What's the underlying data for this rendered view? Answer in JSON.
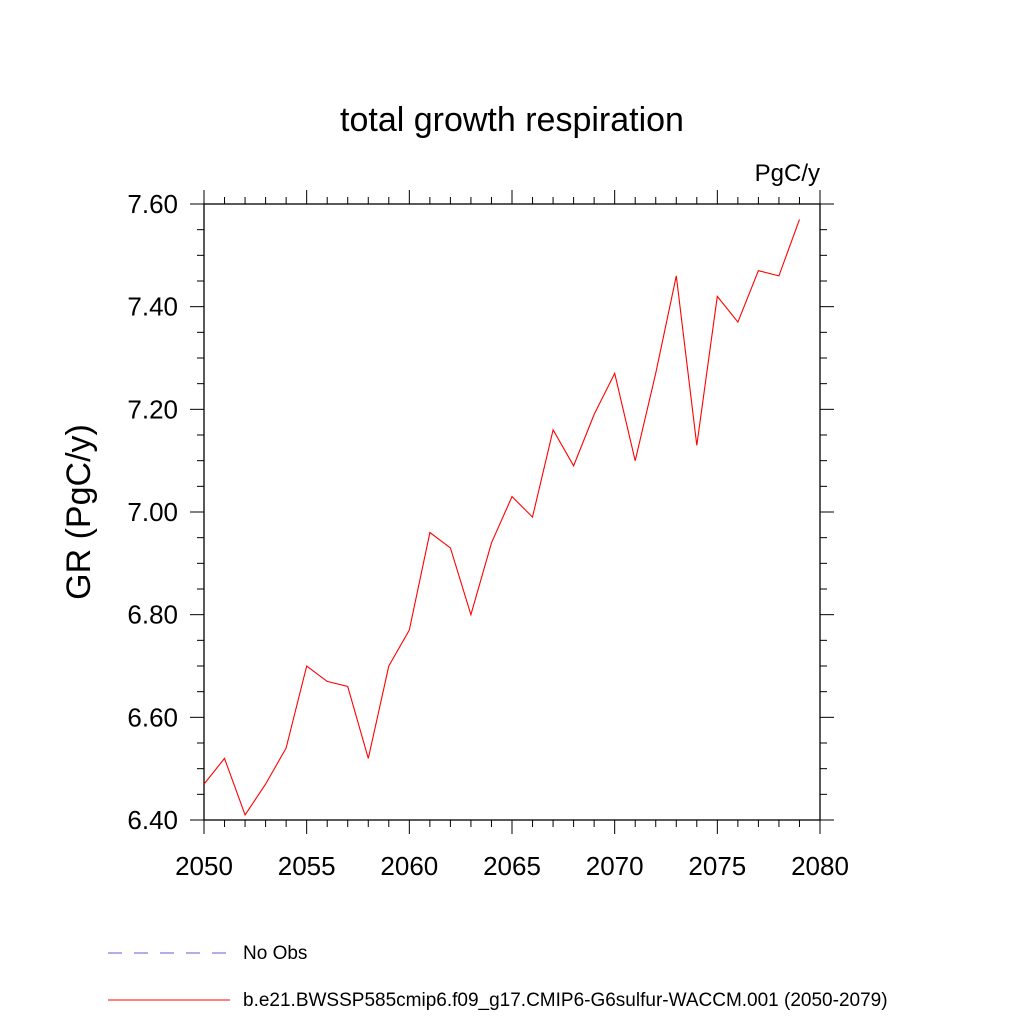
{
  "chart_data": {
    "type": "line",
    "title": "total growth respiration",
    "units": "PgC/y",
    "ylabel": "GR  (PgC/y)",
    "xlabel": "",
    "xlim": [
      2050,
      2080
    ],
    "ylim": [
      6.4,
      7.6
    ],
    "x_ticks": [
      2050,
      2055,
      2060,
      2065,
      2070,
      2075,
      2080
    ],
    "x_tick_labels": [
      "2050",
      "2055",
      "2060",
      "2065",
      "2070",
      "2075",
      "2080"
    ],
    "y_ticks": [
      6.4,
      6.6,
      6.8,
      7.0,
      7.2,
      7.4,
      7.6
    ],
    "y_tick_labels": [
      "6.40",
      "6.60",
      "6.80",
      "7.00",
      "7.20",
      "7.40",
      "7.60"
    ],
    "grid": false,
    "series": [
      {
        "name": "b.e21.BWSSP585cmip6.f09_g17.CMIP6-G6sulfur-WACCM.001 (2050-2079)",
        "color": "#ff0000",
        "style": "solid",
        "x": [
          2050,
          2051,
          2052,
          2053,
          2054,
          2055,
          2056,
          2057,
          2058,
          2059,
          2060,
          2061,
          2062,
          2063,
          2064,
          2065,
          2066,
          2067,
          2068,
          2069,
          2070,
          2071,
          2072,
          2073,
          2074,
          2075,
          2076,
          2077,
          2078,
          2079
        ],
        "values": [
          6.47,
          6.52,
          6.41,
          6.47,
          6.54,
          6.7,
          6.67,
          6.66,
          6.52,
          6.7,
          6.77,
          6.96,
          6.93,
          6.8,
          6.94,
          7.03,
          6.99,
          7.16,
          7.09,
          7.19,
          7.27,
          7.1,
          7.27,
          7.46,
          7.13,
          7.42,
          7.37,
          7.47,
          7.46,
          7.57
        ]
      }
    ],
    "legend": {
      "placement": "bottom-left",
      "entries": [
        {
          "label": "No Obs",
          "color": "#6a5acd",
          "style": "dashed"
        },
        {
          "label": "b.e21.BWSSP585cmip6.f09_g17.CMIP6-G6sulfur-WACCM.001 (2050-2079)",
          "color": "#ff0000",
          "style": "solid"
        }
      ]
    }
  }
}
